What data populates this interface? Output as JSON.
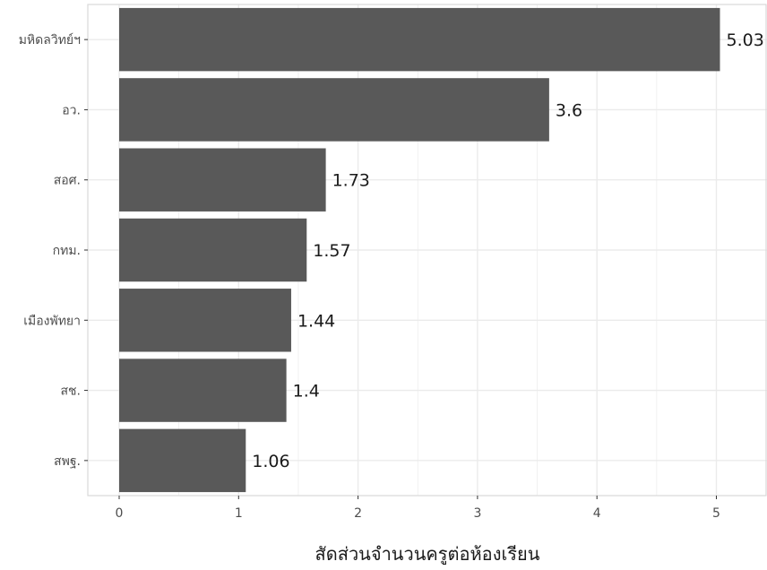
{
  "chart_data": {
    "type": "bar",
    "orientation": "horizontal",
    "categories": [
      "มหิดลวิทย์ฯ",
      "อว.",
      "สอศ.",
      "กทม.",
      "เมืองพัทยา",
      "สช.",
      "สพฐ."
    ],
    "values": [
      5.03,
      3.6,
      1.73,
      1.57,
      1.44,
      1.4,
      1.06
    ],
    "data_labels": [
      "5.03",
      "3.6",
      "1.73",
      "1.57",
      "1.44",
      "1.4",
      "1.06"
    ],
    "xlabel": "สัดส่วนจำนวนครูต่อห้องเรียน",
    "ylabel": "",
    "xlim": [
      -0.25,
      5.5
    ],
    "x_ticks": [
      0,
      1,
      2,
      3,
      4,
      5
    ],
    "x_tick_labels": [
      "0",
      "1",
      "2",
      "3",
      "4",
      "5"
    ],
    "grid": true,
    "legend": "none",
    "colors": {
      "bar": "#595959",
      "grid": "#ebebeb",
      "panel_border": "#d9d9d9"
    }
  }
}
